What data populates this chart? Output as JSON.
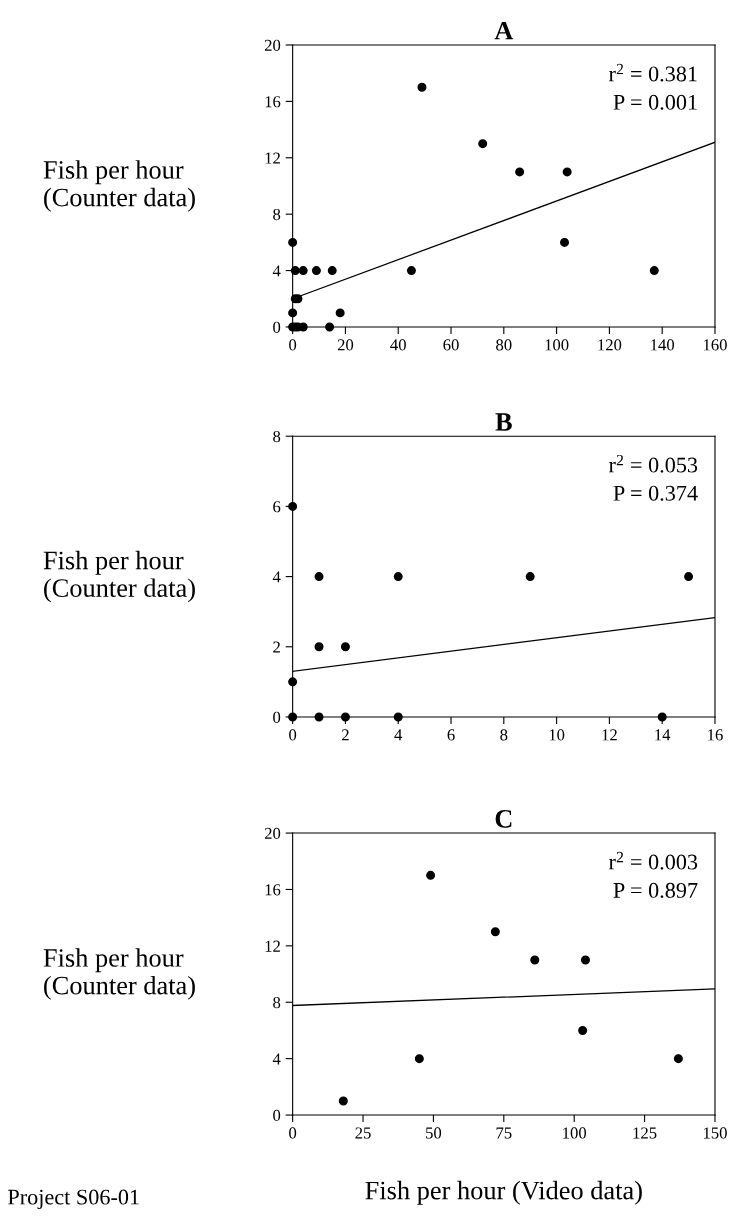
{
  "chart_data": [
    {
      "type": "scatter",
      "title": "A",
      "ylabel": "Fish per hour\n(Counter data)",
      "xlim": [
        0,
        160
      ],
      "xticks": [
        0,
        20,
        40,
        60,
        80,
        100,
        120,
        140,
        160
      ],
      "ylim": [
        0,
        20
      ],
      "yticks": [
        0,
        4,
        8,
        12,
        16,
        20
      ],
      "grid": false,
      "legend": false,
      "annotations": [
        "r$^{2}$ = 0.381",
        "P = 0.001"
      ],
      "series": [
        {
          "color": "#000000",
          "marker": "circle",
          "x": [
            49,
            72,
            86,
            104,
            103,
            137,
            45,
            0,
            1,
            4,
            9,
            15,
            1,
            2,
            0,
            18,
            0,
            1,
            2,
            4,
            14
          ],
          "values": [
            17,
            13,
            11,
            11,
            6,
            4,
            4,
            6,
            4,
            4,
            4,
            4,
            2,
            2,
            1,
            1,
            0,
            0,
            0,
            0,
            0
          ]
        },
        {
          "type": "line",
          "color": "#000000",
          "x": [
            0,
            160
          ],
          "values": [
            2.0,
            13.1
          ]
        }
      ]
    },
    {
      "type": "scatter",
      "title": "B",
      "ylabel": "Fish per hour\n(Counter data)",
      "xlim": [
        0,
        16
      ],
      "xticks": [
        0,
        2,
        4,
        6,
        8,
        10,
        12,
        14,
        16
      ],
      "ylim": [
        0,
        8
      ],
      "yticks": [
        0,
        2,
        4,
        6,
        8
      ],
      "grid": false,
      "legend": false,
      "annotations": [
        "r$^{2}$ = 0.053",
        "P = 0.374"
      ],
      "series": [
        {
          "color": "#000000",
          "marker": "circle",
          "x": [
            0,
            1,
            4,
            9,
            15,
            1,
            2,
            0,
            0,
            1,
            2,
            4,
            14
          ],
          "values": [
            6,
            4,
            4,
            4,
            4,
            2,
            2,
            1,
            0,
            0,
            0,
            0,
            0
          ]
        },
        {
          "type": "line",
          "color": "#000000",
          "x": [
            0,
            16
          ],
          "values": [
            1.3,
            2.83
          ]
        }
      ]
    },
    {
      "type": "scatter",
      "title": "C",
      "ylabel": "Fish per hour\n(Counter data)",
      "xlabel": "Fish per hour (Video data)",
      "xlim": [
        0,
        150
      ],
      "xticks": [
        0,
        25,
        50,
        75,
        100,
        125,
        150
      ],
      "ylim": [
        0,
        20
      ],
      "yticks": [
        0,
        4,
        8,
        12,
        16,
        20
      ],
      "grid": false,
      "legend": false,
      "annotations": [
        "r$^{2}$ = 0.003",
        "P = 0.897",
        "Project S06-01"
      ],
      "series": [
        {
          "color": "#000000",
          "marker": "circle",
          "x": [
            18,
            45,
            49,
            72,
            86,
            104,
            103,
            137
          ],
          "values": [
            1,
            4,
            17,
            13,
            11,
            11,
            6,
            4
          ]
        },
        {
          "type": "line",
          "color": "#000000",
          "x": [
            0,
            150
          ],
          "values": [
            7.77,
            8.95
          ]
        }
      ]
    }
  ]
}
